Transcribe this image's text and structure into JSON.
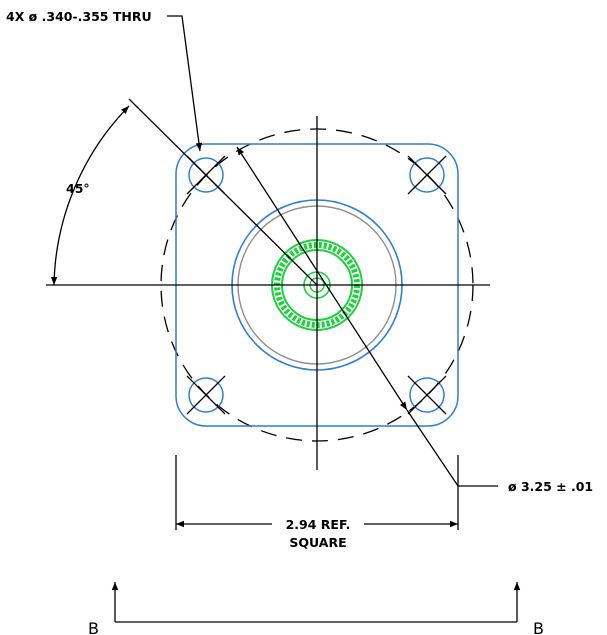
{
  "annotations": {
    "hole_callout": "4X ø .340-.355 THRU",
    "angle_label": "45°",
    "bolt_circle_diameter": "ø 3.25 ± .01",
    "width_dim_line1": "2.94 REF.",
    "width_dim_line2": "SQUARE"
  },
  "section_labels": {
    "left": "B",
    "right": "B"
  },
  "colors": {
    "outline": "#2f7fd2",
    "connector": "#19d23c",
    "inner_gray": "#8f8f8f",
    "dimension": "#000000"
  }
}
